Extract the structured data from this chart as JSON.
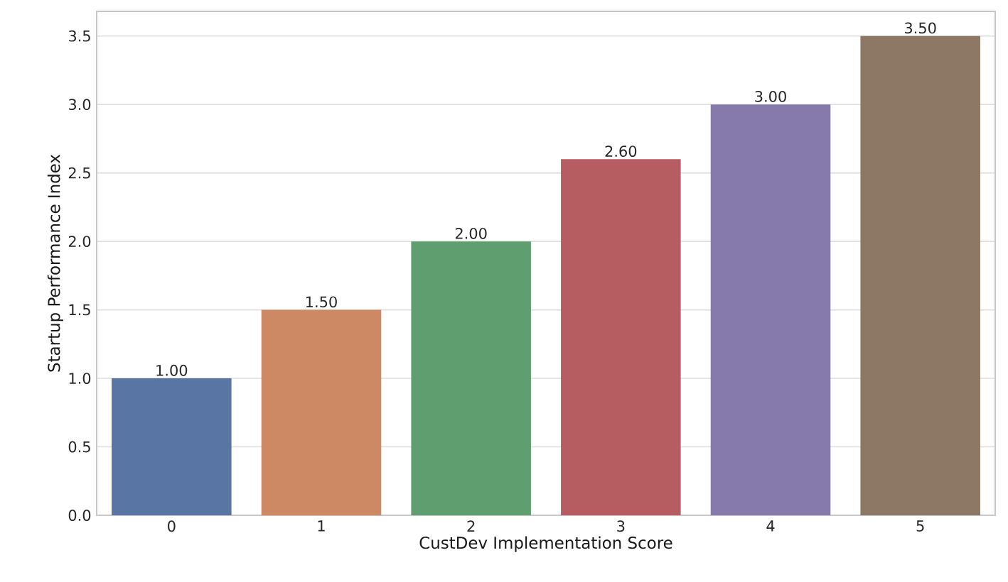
{
  "chart_data": {
    "type": "bar",
    "xlabel": "CustDev Implementation Score",
    "ylabel": "Startup Performance Index",
    "categories": [
      "0",
      "1",
      "2",
      "3",
      "4",
      "5"
    ],
    "values": [
      1.0,
      1.5,
      2.0,
      2.6,
      3.0,
      3.5
    ],
    "value_labels": [
      "1.00",
      "1.50",
      "2.00",
      "2.60",
      "3.00",
      "3.50"
    ],
    "colors": [
      "#5875a4",
      "#cc8963",
      "#5f9e6e",
      "#b55d60",
      "#857aab",
      "#8d7866"
    ],
    "ylim": [
      0,
      3.68
    ],
    "yticks": [
      {
        "value": 0,
        "label": "0.0"
      },
      {
        "value": 0.5,
        "label": "0.5"
      },
      {
        "value": 1,
        "label": "1.0"
      },
      {
        "value": 1.5,
        "label": "1.5"
      },
      {
        "value": 2,
        "label": "2.0"
      },
      {
        "value": 2.5,
        "label": "2.5"
      },
      {
        "value": 3,
        "label": "3.0"
      },
      {
        "value": 3.5,
        "label": "3.5"
      }
    ],
    "grid": "y"
  }
}
